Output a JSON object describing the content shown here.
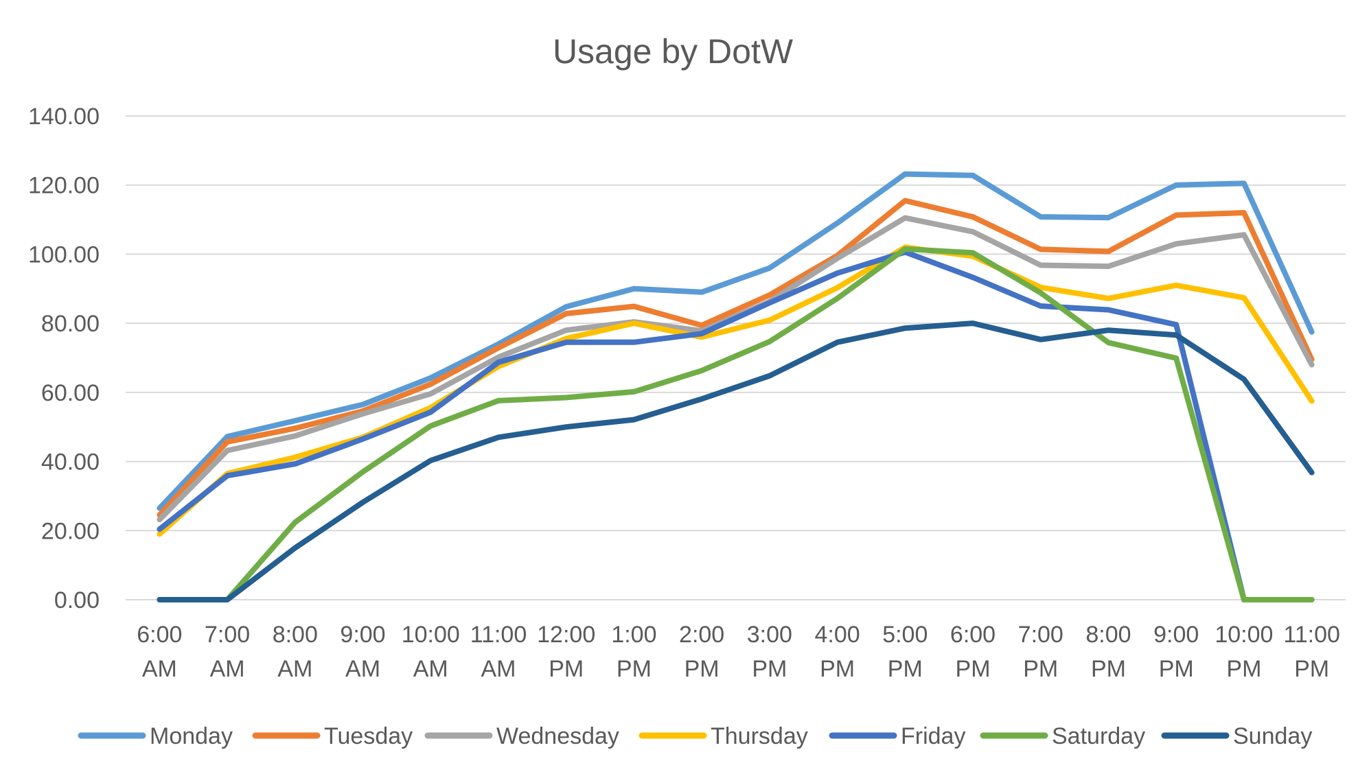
{
  "chart_data": {
    "type": "line",
    "title": "Usage by DotW",
    "xlabel": "",
    "ylabel": "",
    "ylim": [
      0,
      140
    ],
    "y_ticks": [
      "0.00",
      "20.00",
      "40.00",
      "60.00",
      "80.00",
      "100.00",
      "120.00",
      "140.00"
    ],
    "y_tick_values": [
      0,
      20,
      40,
      60,
      80,
      100,
      120,
      140
    ],
    "grid": true,
    "legend_position": "bottom",
    "categories": [
      [
        "6:00",
        "AM"
      ],
      [
        "7:00",
        "AM"
      ],
      [
        "8:00",
        "AM"
      ],
      [
        "9:00",
        "AM"
      ],
      [
        "10:00",
        "AM"
      ],
      [
        "11:00",
        "AM"
      ],
      [
        "12:00",
        "PM"
      ],
      [
        "1:00",
        "PM"
      ],
      [
        "2:00",
        "PM"
      ],
      [
        "3:00",
        "PM"
      ],
      [
        "4:00",
        "PM"
      ],
      [
        "5:00",
        "PM"
      ],
      [
        "6:00",
        "PM"
      ],
      [
        "7:00",
        "PM"
      ],
      [
        "8:00",
        "PM"
      ],
      [
        "9:00",
        "PM"
      ],
      [
        "10:00",
        "PM"
      ],
      [
        "11:00",
        "PM"
      ]
    ],
    "series": [
      {
        "name": "Monday",
        "color": "#5B9BD5",
        "values": [
          26.5,
          47.2,
          51.8,
          56.5,
          64.2,
          74.0,
          84.8,
          90.0,
          89.0,
          96.0,
          109.0,
          123.2,
          122.8,
          110.8,
          110.6,
          120.0,
          120.5,
          77.5
        ]
      },
      {
        "name": "Tuesday",
        "color": "#ED7D31",
        "values": [
          24.5,
          45.7,
          49.6,
          54.6,
          62.4,
          72.9,
          82.8,
          84.9,
          79.4,
          88.2,
          99.6,
          115.5,
          110.8,
          101.4,
          100.8,
          111.3,
          112.0,
          69.5
        ]
      },
      {
        "name": "Wednesday",
        "color": "#A5A5A5",
        "values": [
          23.2,
          43.2,
          47.4,
          53.8,
          59.6,
          70.2,
          78.0,
          80.4,
          77.8,
          86.3,
          98.8,
          110.5,
          106.5,
          96.8,
          96.5,
          103.0,
          105.6,
          68.0
        ]
      },
      {
        "name": "Thursday",
        "color": "#FFC000",
        "values": [
          19.0,
          36.5,
          41.2,
          47.0,
          55.6,
          67.5,
          75.6,
          80.0,
          76.0,
          80.9,
          90.3,
          102.0,
          99.4,
          90.4,
          87.2,
          91.0,
          87.4,
          57.5
        ]
      },
      {
        "name": "Friday",
        "color": "#4472C4",
        "values": [
          20.4,
          35.9,
          39.3,
          46.5,
          54.3,
          68.7,
          74.5,
          74.5,
          77.0,
          85.9,
          94.5,
          100.6,
          93.3,
          85.0,
          83.9,
          79.6,
          0.0,
          0.0
        ]
      },
      {
        "name": "Saturday",
        "color": "#70AD47",
        "values": [
          0.0,
          0.0,
          22.4,
          37.0,
          50.3,
          57.6,
          58.5,
          60.2,
          66.3,
          74.7,
          87.2,
          101.5,
          100.4,
          88.8,
          74.4,
          69.9,
          0.0,
          0.0
        ]
      },
      {
        "name": "Sunday",
        "color": "#255E91",
        "values": [
          0.0,
          0.0,
          15.0,
          28.2,
          40.3,
          47.0,
          50.0,
          52.1,
          58.1,
          64.8,
          74.5,
          78.6,
          80.0,
          75.3,
          78.0,
          76.6,
          63.8,
          36.8
        ]
      }
    ]
  }
}
